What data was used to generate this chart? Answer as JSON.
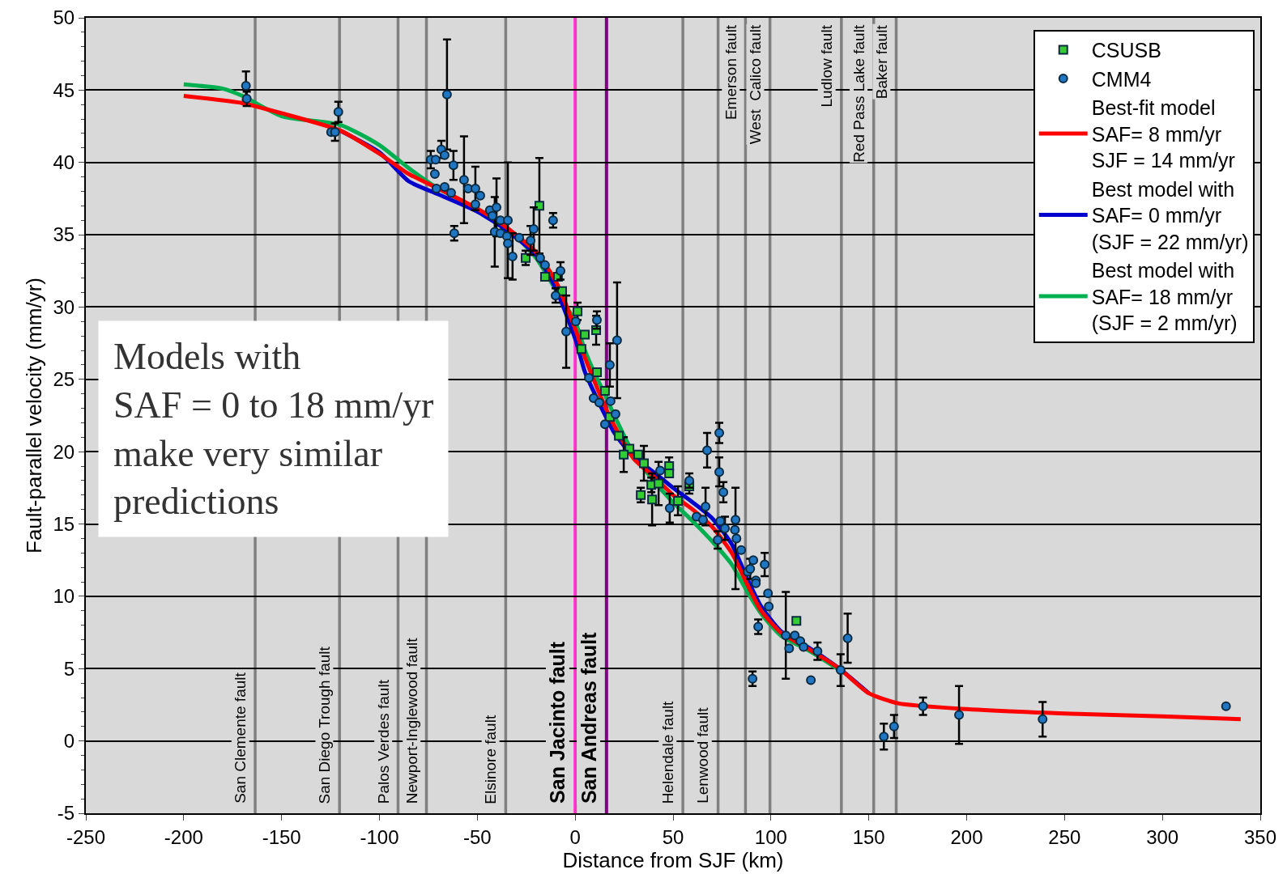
{
  "chart_data": {
    "type": "scatter",
    "xlabel": "Distance from SJF (km)",
    "ylabel": "Fault-parallel velocity (mm/yr)",
    "xlim": [
      -250,
      350
    ],
    "xticks": [
      -250,
      -200,
      -150,
      -100,
      -50,
      0,
      50,
      100,
      150,
      200,
      250,
      300,
      350
    ],
    "ylim": [
      -5,
      50
    ],
    "yticks": [
      -5,
      0,
      5,
      10,
      15,
      20,
      25,
      30,
      35,
      40,
      45,
      50
    ],
    "grid": "y",
    "legend": "top right",
    "annotations": [
      "Models with\nSAF = 0 to 18 mm/yr\nmake very similar\npredictions"
    ],
    "ref_lines": [
      {
        "axis": "x",
        "value": -163.5,
        "label": "San Clemente fault"
      },
      {
        "axis": "x",
        "value": -120.4,
        "label": "San Diego Trough fault"
      },
      {
        "axis": "x",
        "value": -90.5,
        "label": "Palos Verdes fault"
      },
      {
        "axis": "x",
        "value": -76,
        "label": "Newport-Inglewood fault"
      },
      {
        "axis": "x",
        "value": -35.5,
        "label": "Elsinore fault"
      },
      {
        "axis": "x",
        "value": 0,
        "label": "San Jacinto fault",
        "color": "#ff33cc"
      },
      {
        "axis": "x",
        "value": 16,
        "label": "San Andreas fault",
        "color": "#800080"
      },
      {
        "axis": "x",
        "value": 55,
        "label": "Helendale fault"
      },
      {
        "axis": "x",
        "value": 73,
        "label": "Lenwood fault"
      },
      {
        "axis": "x",
        "value": 87,
        "label": "Emerson fault"
      },
      {
        "axis": "x",
        "value": 99.5,
        "label": "West  Calico fault"
      },
      {
        "axis": "x",
        "value": 136,
        "label": "Ludlow fault"
      },
      {
        "axis": "x",
        "value": 152.5,
        "label": "Red Pass Lake fault"
      },
      {
        "axis": "x",
        "value": 164,
        "label": "Baker fault"
      }
    ],
    "series": [
      {
        "name": "CSUSB",
        "type": "scatter",
        "marker": "square",
        "color": "#33cc33",
        "x": [
          -18.3,
          -25.3,
          -15.4,
          -8.8,
          -6.7,
          1.2,
          4.9,
          3.2,
          10.7,
          11.1,
          15.2,
          17.7,
          22.3,
          27.7,
          24.8,
          32.2,
          35.1,
          33.5,
          38.9,
          42.6,
          39.3,
          48,
          48,
          52.5,
          58.3,
          113
        ],
        "values": [
          37,
          33.4,
          32.1,
          32.1,
          31.1,
          29.7,
          28.1,
          27.1,
          28.4,
          25.5,
          24.2,
          22.4,
          21.1,
          20.2,
          19.8,
          19.8,
          19.2,
          17,
          17.7,
          17.8,
          16.7,
          19,
          18.5,
          16.6,
          17.6,
          8.3
        ],
        "errors": [
          3.3,
          0.5,
          null,
          null,
          null,
          0.6,
          null,
          null,
          1,
          null,
          null,
          null,
          null,
          null,
          1.2,
          null,
          1.2,
          0.5,
          0.5,
          1.5,
          1.8,
          0.6,
          null,
          1,
          0.5,
          null
        ]
      },
      {
        "name": "CMM4",
        "type": "scatter",
        "marker": "circle",
        "color": "#1f77c4",
        "x": [
          -168.2,
          -167.8,
          -121,
          -124.7,
          -122.7,
          -65.5,
          -73.8,
          -71.3,
          -68.4,
          -66.7,
          -71.7,
          -62.2,
          -70.9,
          -66.7,
          -63.4,
          -61.8,
          -56.8,
          -54.7,
          -51,
          -48.5,
          -51,
          -43.6,
          -40.2,
          -42.3,
          -38.2,
          -34.4,
          -41.1,
          -38.2,
          -34.9,
          -34.4,
          -32,
          -28.6,
          -22.8,
          -21.2,
          -11.3,
          -17.9,
          -15.4,
          -7.5,
          -10,
          -4.6,
          0.3,
          11.1,
          21.4,
          17.7,
          7,
          9.4,
          12.3,
          18.1,
          20.6,
          15.2,
          43.4,
          48.3,
          58.3,
          62,
          65.3,
          66.6,
          67.4,
          73.6,
          73.6,
          75.7,
          74.1,
          72.8,
          76.5,
          81.9,
          81.6,
          82.4,
          84.8,
          88.1,
          89.4,
          91,
          92.3,
          92.3,
          96.8,
          98.5,
          98.9,
          93.5,
          107.6,
          109.3,
          112.2,
          115,
          116.7,
          123.8,
          135.6,
          139.2,
          90.6,
          120.4,
          157.7,
          162.9,
          177.7,
          196.1,
          238.8,
          332.5
        ],
        "values": [
          45.3,
          44.4,
          43.5,
          42.1,
          42.1,
          44.7,
          40.2,
          40.2,
          40.9,
          40.5,
          39.2,
          39.8,
          38.2,
          38.3,
          37.9,
          35.1,
          38.8,
          38.2,
          38.2,
          37.7,
          37.1,
          36.7,
          36.9,
          36.3,
          36,
          36,
          35.2,
          35.1,
          34.9,
          34.4,
          33.5,
          34.8,
          34.6,
          35.4,
          36,
          33.4,
          32.9,
          32.5,
          30.8,
          28.3,
          29,
          29.1,
          27.7,
          26,
          25.1,
          23.7,
          23.4,
          23.5,
          22.6,
          21.9,
          18.7,
          16.1,
          18,
          15.5,
          15.3,
          16.2,
          20.1,
          21.3,
          18.6,
          17.2,
          15.2,
          13.9,
          14.7,
          15.3,
          14.6,
          14,
          13.2,
          11.7,
          11.9,
          12.5,
          11.1,
          10.9,
          12.2,
          10.2,
          9.3,
          7.9,
          7.3,
          6.4,
          7.3,
          6.9,
          6.5,
          6.2,
          4.9,
          7.1,
          4.3,
          4.2,
          0.3,
          1,
          2.4,
          1.8,
          1.5,
          2.4
        ],
        "errors": [
          1,
          0.5,
          0.7,
          null,
          0.6,
          3.8,
          0.6,
          null,
          0.6,
          null,
          null,
          1,
          null,
          null,
          null,
          0.5,
          3,
          null,
          1.5,
          null,
          null,
          null,
          2,
          null,
          null,
          4,
          2.4,
          null,
          null,
          null,
          1.6,
          null,
          1,
          1.5,
          0.5,
          null,
          null,
          0.6,
          0.5,
          2.5,
          null,
          0.6,
          4,
          1.5,
          null,
          null,
          null,
          null,
          null,
          null,
          null,
          1,
          0.5,
          null,
          null,
          1.3,
          1.2,
          0.7,
          1,
          0.7,
          null,
          0.6,
          0.8,
          [
            10.5,
            17.5
          ],
          null,
          null,
          null,
          null,
          0.7,
          null,
          null,
          null,
          0.8,
          null,
          null,
          0.5,
          3,
          null,
          null,
          null,
          null,
          0.6,
          1.1,
          1.7,
          0.5,
          null,
          0.9,
          0.8,
          0.6,
          2,
          1.2,
          null
        ]
      },
      {
        "name": "Best-fit model\nSAF= 8 mm/yr\nSJF = 14 mm/yr",
        "type": "line",
        "marker": "none",
        "color": "#ff0000",
        "x": [
          -200,
          -170,
          -150,
          -120,
          -100,
          -85,
          -70,
          -50,
          -35,
          -20,
          -10,
          0,
          5,
          10,
          15,
          20,
          30,
          40,
          50,
          60,
          70,
          80,
          88,
          95,
          105,
          120,
          135,
          150,
          165,
          200,
          250,
          300,
          340
        ],
        "values": [
          44.6,
          44.1,
          43.4,
          42.2,
          40.6,
          39.2,
          38.2,
          36.8,
          35.5,
          33.8,
          31.8,
          28.5,
          26.5,
          24.8,
          23.2,
          21.8,
          19.5,
          18.3,
          17,
          16,
          14.8,
          13,
          10.8,
          9,
          7.5,
          6.3,
          5,
          3.3,
          2.6,
          2.2,
          1.9,
          1.7,
          1.5
        ]
      },
      {
        "name": "Best model with\nSAF= 0 mm/yr\n(SJF = 22 mm/yr)",
        "type": "line",
        "marker": "none",
        "color": "#0000cc",
        "x": [
          -120,
          -100,
          -85,
          -70,
          -50,
          -35,
          -20,
          -10,
          0,
          5,
          10,
          15,
          20,
          30,
          40,
          50,
          60,
          70,
          80,
          88,
          95,
          105,
          120,
          135,
          150
        ],
        "values": [
          42.2,
          40.7,
          38.7,
          37.8,
          36.6,
          35.3,
          33.6,
          31.3,
          27.8,
          25.5,
          24,
          22.6,
          21.3,
          19.6,
          18.6,
          17.5,
          16.5,
          15.4,
          13.6,
          11.2,
          9.3,
          7.6,
          6.4,
          5,
          3.3
        ]
      },
      {
        "name": "Best model with\nSAF= 18 mm/yr\n(SJF = 2 mm/yr)",
        "type": "line",
        "marker": "none",
        "color": "#00b050",
        "x": [
          -200,
          -180,
          -170,
          -150,
          -120,
          -100,
          -85,
          -70,
          -50,
          -35,
          -20,
          -10,
          0,
          5,
          10,
          15,
          20,
          30,
          40,
          50,
          60,
          70,
          80,
          88,
          95,
          105,
          120,
          135
        ],
        "values": [
          45.4,
          45.1,
          44.6,
          43.2,
          42.6,
          41.2,
          39.6,
          38.2,
          36.8,
          35.5,
          33.4,
          31.2,
          29,
          27,
          25.4,
          24,
          22.5,
          19.8,
          18,
          16.5,
          15.2,
          13.8,
          12.2,
          10.3,
          8.8,
          7.3,
          6.2,
          4.9
        ]
      }
    ]
  }
}
